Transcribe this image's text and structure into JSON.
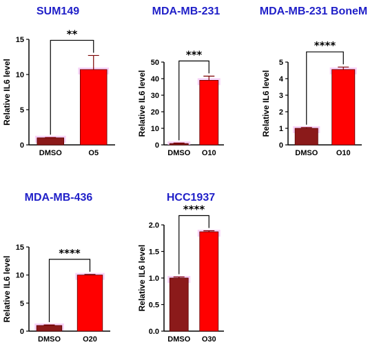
{
  "colors": {
    "title": "#1f1fc8",
    "bar": "#ff0000",
    "bar_base": "#8b1a1a",
    "axis": "#000000",
    "halo": "#f5c0f5"
  },
  "chart_data": [
    {
      "type": "bar",
      "title": "SUM149",
      "ylabel": "Relative IL6 level",
      "categories": [
        "DMSO",
        "O5"
      ],
      "values": [
        1.0,
        10.7
      ],
      "errors": [
        0.05,
        2.0
      ],
      "ylim": [
        0,
        15
      ],
      "yticks": [
        0,
        5,
        10,
        15
      ],
      "significance": "**"
    },
    {
      "type": "bar",
      "title": "MDA-MB-231",
      "ylabel": "Relative IL6 level",
      "categories": [
        "DMSO",
        "O10"
      ],
      "values": [
        0.8,
        39.0
      ],
      "errors": [
        0.3,
        2.5
      ],
      "ylim": [
        0,
        50
      ],
      "yticks": [
        0,
        10,
        20,
        30,
        40,
        50
      ],
      "significance": "***"
    },
    {
      "type": "bar",
      "title": "MDA-MB-231 BoneM",
      "ylabel": "Relative IL6 level",
      "categories": [
        "DMSO",
        "O10"
      ],
      "values": [
        1.0,
        4.55
      ],
      "errors": [
        0.05,
        0.15
      ],
      "ylim": [
        0,
        5
      ],
      "yticks": [
        0,
        1,
        2,
        3,
        4,
        5
      ],
      "significance": "****"
    },
    {
      "type": "bar",
      "title": "MDA-MB-436",
      "ylabel": "Relative IL6 level",
      "categories": [
        "DMSO",
        "O20"
      ],
      "values": [
        1.0,
        10.0
      ],
      "errors": [
        0.1,
        0.1
      ],
      "ylim": [
        0,
        15
      ],
      "yticks": [
        0,
        5,
        10,
        15
      ],
      "significance": "****"
    },
    {
      "type": "bar",
      "title": "HCC1937",
      "ylabel": "Relative IL6 level",
      "categories": [
        "DMSO",
        "O30"
      ],
      "values": [
        1.0,
        1.87
      ],
      "errors": [
        0.02,
        0.02
      ],
      "ylim": [
        0,
        2.0
      ],
      "yticks": [
        0.0,
        0.5,
        1.0,
        1.5,
        2.0
      ],
      "significance": "****"
    }
  ]
}
